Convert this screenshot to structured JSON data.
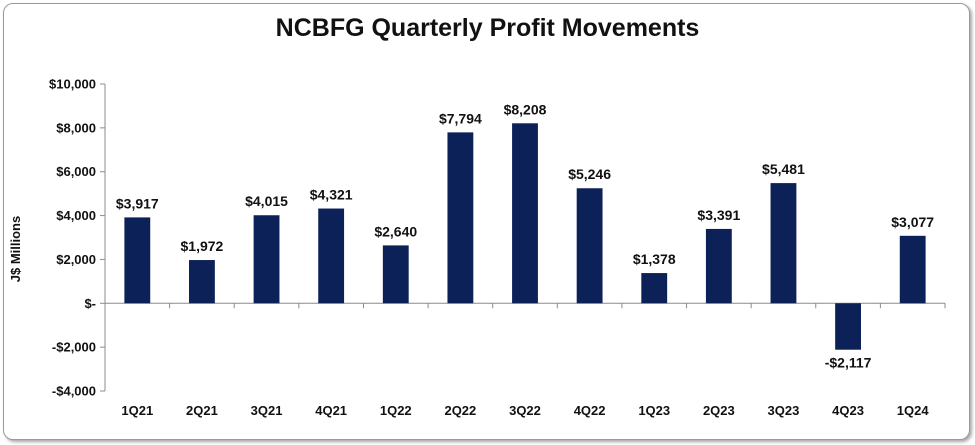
{
  "chart_data": {
    "type": "bar",
    "title": "NCBFG Quarterly Profit Movements",
    "ylabel": "J$ Millions",
    "xlabel": "",
    "categories": [
      "1Q21",
      "2Q21",
      "3Q21",
      "4Q21",
      "1Q22",
      "2Q22",
      "3Q22",
      "4Q22",
      "1Q23",
      "2Q23",
      "3Q23",
      "4Q23",
      "1Q24"
    ],
    "values": [
      3917,
      1972,
      4015,
      4321,
      2640,
      7794,
      8208,
      5246,
      1378,
      3391,
      5481,
      -2117,
      3077
    ],
    "data_labels": [
      "$3,917",
      "$1,972",
      "$4,015",
      "$4,321",
      "$2,640",
      "$7,794",
      "$8,208",
      "$5,246",
      "$1,378",
      "$3,391",
      "$5,481",
      "-$2,117",
      "$3,077"
    ],
    "ylim": [
      -4000,
      10000
    ],
    "yticks": [
      10000,
      8000,
      6000,
      4000,
      2000,
      0,
      -2000,
      -4000
    ],
    "ytick_labels": [
      "$10,000",
      "$8,000",
      "$6,000",
      "$4,000",
      "$2,000",
      "$-",
      "-$2,000",
      "-$4,000"
    ],
    "bar_color": "#0d2159",
    "grid": false,
    "legend": "none"
  }
}
